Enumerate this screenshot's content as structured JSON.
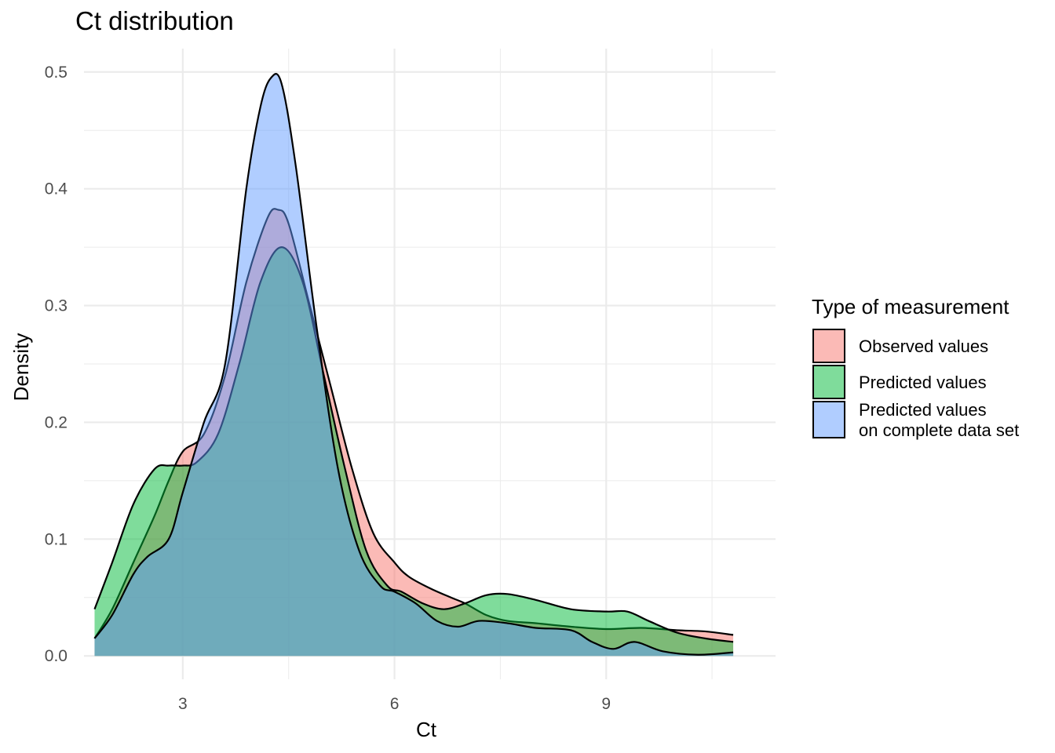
{
  "chart_data": {
    "type": "area",
    "title": "Ct distribution",
    "xlabel": "Ct",
    "ylabel": "Density",
    "xlim": [
      1.6,
      11.4
    ],
    "ylim": [
      -0.02,
      0.52
    ],
    "x_ticks": [
      3,
      6,
      9
    ],
    "y_ticks": [
      0.0,
      0.1,
      0.2,
      0.3,
      0.4,
      0.5
    ],
    "y_tick_labels": [
      "0.0",
      "0.1",
      "0.2",
      "0.3",
      "0.4",
      "0.5"
    ],
    "grid": true,
    "legend": {
      "title": "Type of measurement",
      "position": "right",
      "entries": [
        {
          "label_lines": [
            "Observed values"
          ],
          "color": "#F8766D"
        },
        {
          "label_lines": [
            "Predicted values"
          ],
          "color": "#00BA38"
        },
        {
          "label_lines": [
            "Predicted values",
            "on complete data set"
          ],
          "color": "#619CFF"
        }
      ]
    },
    "series": [
      {
        "color": "#F8766D",
        "x": [
          1.75,
          2.0,
          2.3,
          2.6,
          2.8,
          3.0,
          3.3,
          3.6,
          3.9,
          4.2,
          4.35,
          4.5,
          4.8,
          5.1,
          5.4,
          5.7,
          6.0,
          6.2,
          6.5,
          6.8,
          7.0,
          7.3,
          7.6,
          8.0,
          8.5,
          9.0,
          9.5,
          10.0,
          10.4,
          10.8
        ],
        "y": [
          0.015,
          0.04,
          0.08,
          0.12,
          0.15,
          0.175,
          0.19,
          0.24,
          0.32,
          0.375,
          0.382,
          0.37,
          0.3,
          0.23,
          0.16,
          0.105,
          0.08,
          0.068,
          0.058,
          0.05,
          0.045,
          0.035,
          0.03,
          0.028,
          0.025,
          0.023,
          0.024,
          0.022,
          0.021,
          0.018
        ]
      },
      {
        "color": "#00BA38",
        "x": [
          1.75,
          2.0,
          2.3,
          2.6,
          2.8,
          3.0,
          3.2,
          3.5,
          3.8,
          4.1,
          4.4,
          4.7,
          5.0,
          5.3,
          5.6,
          5.9,
          6.1,
          6.4,
          6.7,
          7.0,
          7.3,
          7.6,
          8.0,
          8.5,
          9.0,
          9.3,
          9.6,
          10.0,
          10.4,
          10.8
        ],
        "y": [
          0.04,
          0.08,
          0.13,
          0.16,
          0.163,
          0.163,
          0.166,
          0.19,
          0.25,
          0.32,
          0.35,
          0.32,
          0.24,
          0.16,
          0.09,
          0.06,
          0.055,
          0.045,
          0.04,
          0.045,
          0.052,
          0.053,
          0.048,
          0.04,
          0.038,
          0.038,
          0.03,
          0.02,
          0.015,
          0.012
        ]
      },
      {
        "color": "#619CFF",
        "x": [
          1.75,
          2.0,
          2.3,
          2.5,
          2.8,
          3.0,
          3.3,
          3.6,
          3.9,
          4.1,
          4.25,
          4.4,
          4.6,
          4.9,
          5.2,
          5.5,
          5.8,
          6.0,
          6.3,
          6.6,
          6.9,
          7.2,
          7.6,
          8.0,
          8.5,
          8.8,
          9.1,
          9.4,
          9.8,
          10.3,
          10.8
        ],
        "y": [
          0.015,
          0.035,
          0.07,
          0.085,
          0.1,
          0.14,
          0.2,
          0.25,
          0.4,
          0.47,
          0.495,
          0.49,
          0.42,
          0.28,
          0.16,
          0.09,
          0.06,
          0.055,
          0.045,
          0.03,
          0.025,
          0.03,
          0.028,
          0.024,
          0.022,
          0.012,
          0.006,
          0.012,
          0.004,
          0.001,
          0.003
        ]
      }
    ]
  }
}
